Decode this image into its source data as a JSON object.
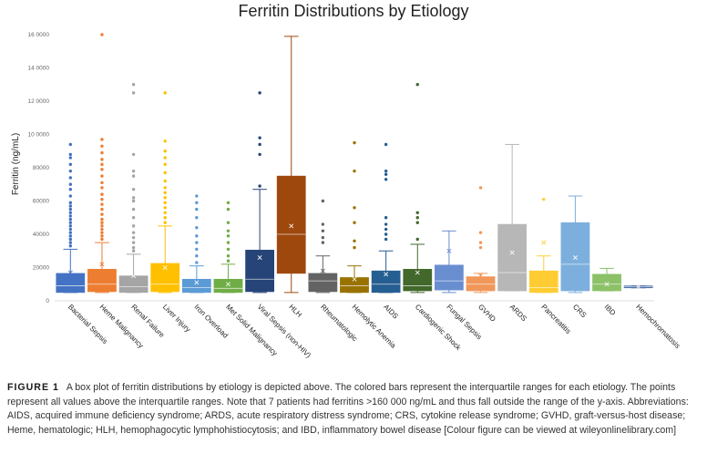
{
  "chart_data": {
    "type": "box",
    "title": "Ferritin Distributions by Etiology",
    "ylabel": "Ferritin (ng/mL)",
    "xlabel": "",
    "ylim": [
      0,
      160000
    ],
    "yticks": [
      0,
      20000,
      40000,
      60000,
      80000,
      100000,
      120000,
      140000,
      160000
    ],
    "ytick_labels": [
      "0",
      "20000",
      "40000",
      "60000",
      "80000",
      "10 0000",
      "12 0000",
      "14 0000",
      "16 0000"
    ],
    "grid": false,
    "categories": [
      {
        "name": "Bacterial Sepsis",
        "color": "#4472c4",
        "q1": 5000,
        "median": 9000,
        "q3": 16500,
        "mean": 17000,
        "whisker_low": 5000,
        "whisker_high": 31000,
        "outliers": [
          33000,
          35000,
          37000,
          39000,
          41000,
          43000,
          45000,
          47000,
          49000,
          51000,
          53000,
          55000,
          57000,
          59000,
          63000,
          67000,
          70000,
          74000,
          78000,
          82000,
          86000,
          88000,
          94000
        ]
      },
      {
        "name": "Heme Malignancy",
        "color": "#ed7d31",
        "q1": 5500,
        "median": 10000,
        "q3": 19000,
        "mean": 22000,
        "whisker_low": 5000,
        "whisker_high": 35000,
        "outliers": [
          37000,
          39000,
          41000,
          43000,
          45000,
          47000,
          49000,
          52000,
          55000,
          58000,
          61000,
          64000,
          68000,
          71000,
          75000,
          79000,
          82000,
          85000,
          89000,
          93000,
          97000,
          160000
        ]
      },
      {
        "name": "Renal Failure",
        "color": "#a5a5a5",
        "q1": 5000,
        "median": 8500,
        "q3": 15000,
        "mean": 15000,
        "whisker_low": 5000,
        "whisker_high": 28000,
        "outliers": [
          30000,
          32000,
          35000,
          38000,
          41000,
          45000,
          50000,
          55000,
          60000,
          62000,
          67000,
          75000,
          78000,
          88000,
          125000,
          130000
        ]
      },
      {
        "name": "Liver Injury",
        "color": "#ffc000",
        "q1": 5500,
        "median": 10000,
        "q3": 22500,
        "mean": 20000,
        "whisker_low": 5000,
        "whisker_high": 45000,
        "outliers": [
          47000,
          50000,
          53000,
          56000,
          59000,
          62000,
          65000,
          68000,
          72000,
          77000,
          82000,
          86000,
          90000,
          96000,
          125000
        ]
      },
      {
        "name": "Iron Overload",
        "color": "#5b9bd5",
        "q1": 5000,
        "median": 8000,
        "q3": 13000,
        "mean": 11000,
        "whisker_low": 5000,
        "whisker_high": 21000,
        "outliers": [
          23000,
          27000,
          31000,
          35000,
          39000,
          44000,
          50000,
          55000,
          59000,
          63000
        ]
      },
      {
        "name": "Met Solid Malignancy",
        "color": "#70ad47",
        "q1": 5000,
        "median": 7500,
        "q3": 13000,
        "mean": 10000,
        "whisker_low": 5000,
        "whisker_high": 22000,
        "outliers": [
          24000,
          27000,
          31000,
          35000,
          39000,
          42000,
          47000,
          55000,
          59000
        ]
      },
      {
        "name": "Viral Sepsis (non-HIV)",
        "color": "#264478",
        "q1": 5500,
        "median": 13000,
        "q3": 30500,
        "mean": 26000,
        "whisker_low": 5000,
        "whisker_high": 67000,
        "outliers": [
          69000,
          88000,
          94000,
          98000,
          125000
        ]
      },
      {
        "name": "HLH",
        "color": "#9e480e",
        "q1": 16500,
        "median": 40000,
        "q3": 75000,
        "mean": 45000,
        "whisker_low": 5000,
        "whisker_high": 159000,
        "outliers": []
      },
      {
        "name": "Rheumatologic",
        "color": "#636363",
        "q1": 5500,
        "median": 12000,
        "q3": 16500,
        "mean": 18000,
        "whisker_low": 5000,
        "whisker_high": 27000,
        "outliers": [
          35000,
          38000,
          42000,
          46000,
          60000
        ]
      },
      {
        "name": "Hemolytic Anemia",
        "color": "#997300",
        "q1": 5000,
        "median": 9000,
        "q3": 14000,
        "mean": 13000,
        "whisker_low": 5000,
        "whisker_high": 21000,
        "outliers": [
          32000,
          36000,
          47000,
          56000,
          78000,
          95000
        ]
      },
      {
        "name": "AIDS",
        "color": "#255e91",
        "q1": 5000,
        "median": 10000,
        "q3": 18000,
        "mean": 16000,
        "whisker_low": 5000,
        "whisker_high": 30000,
        "outliers": [
          37000,
          40000,
          43000,
          46000,
          50000,
          73000,
          76000,
          78000,
          94000
        ]
      },
      {
        "name": "Cardiogenic Shock",
        "color": "#43682b",
        "q1": 6000,
        "median": 9000,
        "q3": 19000,
        "mean": 17000,
        "whisker_low": 5000,
        "whisker_high": 34000,
        "outliers": [
          37000,
          47000,
          50000,
          53000,
          130000
        ]
      },
      {
        "name": "Fungal Sepsis",
        "color": "#698ed0",
        "q1": 6500,
        "median": 12000,
        "q3": 21500,
        "mean": 30000,
        "whisker_low": 5000,
        "whisker_high": 42000,
        "outliers": []
      },
      {
        "name": "GVHD",
        "color": "#f1975a",
        "q1": 6000,
        "median": 10000,
        "q3": 14500,
        "mean": 15000,
        "whisker_low": 5000,
        "whisker_high": 16500,
        "outliers": [
          32000,
          35000,
          41000,
          68000
        ]
      },
      {
        "name": "ARDS",
        "color": "#b7b7b7",
        "q1": 6000,
        "median": 17000,
        "q3": 46000,
        "mean": 29000,
        "whisker_low": 6000,
        "whisker_high": 94000,
        "outliers": []
      },
      {
        "name": "Pancreatitis",
        "color": "#ffcd33",
        "q1": 5000,
        "median": 8000,
        "q3": 18000,
        "mean": 35000,
        "whisker_low": 5000,
        "whisker_high": 27000,
        "outliers": [
          61000
        ]
      },
      {
        "name": "CRS",
        "color": "#7cafdd",
        "q1": 6000,
        "median": 22000,
        "q3": 47000,
        "mean": 26000,
        "whisker_low": 5000,
        "whisker_high": 63000,
        "outliers": []
      },
      {
        "name": "IBD",
        "color": "#8cc168",
        "q1": 6000,
        "median": 10000,
        "q3": 16000,
        "mean": 10000,
        "whisker_low": 6000,
        "whisker_high": 19500,
        "outliers": []
      },
      {
        "name": "Hemochromatosis",
        "color": "#4c6ea8",
        "q1": 7800,
        "median": 8500,
        "q3": 9000,
        "mean": 8500,
        "whisker_low": 7800,
        "whisker_high": 9000,
        "outliers": []
      }
    ]
  },
  "caption": {
    "label": "FIGURE 1",
    "text": "A box plot of ferritin distributions by etiology is depicted above. The colored bars represent the interquartile ranges for each etiology. The points represent all values above the interquartile ranges. Note that 7 patients had ferritins >160 000 ng/mL and thus fall outside the range of the y-axis. Abbreviations: AIDS, acquired immune deficiency syndrome; ARDS, acute respiratory distress syndrome; CRS, cytokine release syndrome; GVHD, graft-versus-host disease; Heme, hematologic; HLH, hemophagocytic lymphohistiocytosis; and IBD, inflammatory bowel disease [Colour figure can be viewed at wileyonlinelibrary.com]"
  }
}
